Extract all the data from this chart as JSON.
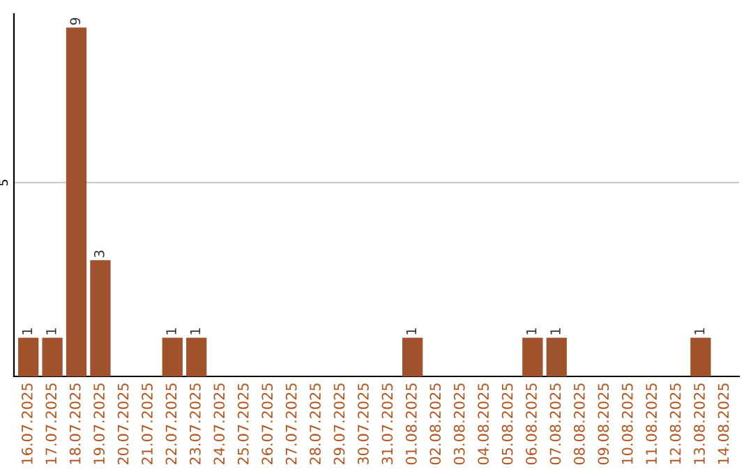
{
  "chart_data": {
    "type": "bar",
    "categories": [
      "16.07.2025",
      "17.07.2025",
      "18.07.2025",
      "19.07.2025",
      "20.07.2025",
      "21.07.2025",
      "22.07.2025",
      "23.07.2025",
      "24.07.2025",
      "25.07.2025",
      "26.07.2025",
      "27.07.2025",
      "28.07.2025",
      "29.07.2025",
      "30.07.2025",
      "31.07.2025",
      "01.08.2025",
      "02.08.2025",
      "03.08.2025",
      "04.08.2025",
      "05.08.2025",
      "06.08.2025",
      "07.08.2025",
      "08.08.2025",
      "09.08.2025",
      "10.08.2025",
      "11.08.2025",
      "12.08.2025",
      "13.08.2025",
      "14.08.2025"
    ],
    "values": [
      1,
      1,
      9,
      3,
      0,
      0,
      1,
      1,
      0,
      0,
      0,
      0,
      0,
      0,
      0,
      0,
      1,
      0,
      0,
      0,
      0,
      1,
      1,
      0,
      0,
      0,
      0,
      0,
      1,
      0
    ],
    "value_labels": [
      "1",
      "1",
      "9",
      "3",
      null,
      null,
      "1",
      "1",
      null,
      null,
      null,
      null,
      null,
      null,
      null,
      null,
      "1",
      null,
      null,
      null,
      null,
      "1",
      "1",
      null,
      null,
      null,
      null,
      null,
      "1",
      null
    ],
    "color": "#a0522d",
    "ylim": [
      0,
      9.35
    ],
    "yticks": [
      5
    ],
    "grid": "y"
  }
}
